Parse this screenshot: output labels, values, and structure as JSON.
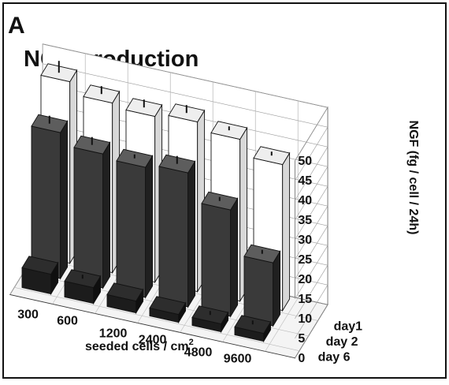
{
  "panel_label": "A",
  "chart_data": {
    "type": "bar",
    "title": "NGF-production",
    "xlabel": "seeded cells / cm",
    "xlabel_superscript": "2",
    "ylabel": "NGF (fg / cell / 24h)",
    "ylim": [
      0,
      50
    ],
    "yticks": [
      0,
      5,
      10,
      15,
      20,
      25,
      30,
      35,
      40,
      45,
      50
    ],
    "grid": true,
    "categories": [
      "300",
      "600",
      "1200",
      "2400",
      "4800",
      "9600"
    ],
    "series": [
      {
        "name": "day1",
        "values": [
          46,
          43,
          42,
          43,
          41,
          37
        ],
        "errors": [
          3,
          2,
          2,
          2,
          1,
          1
        ],
        "color": "#ffffff"
      },
      {
        "name": "day 2",
        "values": [
          37,
          34,
          33,
          34,
          27,
          16
        ],
        "errors": [
          2,
          2,
          1,
          2,
          1,
          1
        ],
        "color": "#3a3a3a"
      },
      {
        "name": "day 6",
        "values": [
          5,
          4,
          3,
          2,
          2,
          2
        ],
        "errors": [
          0,
          1,
          0,
          0,
          1,
          1
        ],
        "color": "#1c1c1c"
      }
    ]
  }
}
